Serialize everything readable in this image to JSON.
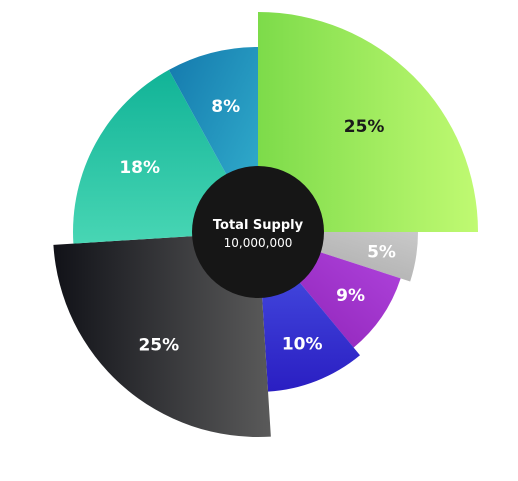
{
  "chart_data": {
    "type": "pie",
    "center": {
      "title": "Total Supply",
      "value": "10,000,000"
    },
    "slices": [
      {
        "label": "25%",
        "value": 25,
        "color_start": "#7ddb4a",
        "color_end": "#c0fa72",
        "label_color": "#1a1a1a"
      },
      {
        "label": "5%",
        "value": 5,
        "color_start": "#c9c9c9",
        "color_end": "#a6a6a6",
        "label_color": "#ffffff"
      },
      {
        "label": "9%",
        "value": 9,
        "color_start": "#b247e0",
        "color_end": "#8b1fb3",
        "label_color": "#ffffff"
      },
      {
        "label": "10%",
        "value": 10,
        "color_start": "#4a55e6",
        "color_end": "#2a1ec2",
        "label_color": "#ffffff"
      },
      {
        "label": "25%",
        "value": 25,
        "color_start": "#111218",
        "color_end": "#5a5a5a",
        "label_color": "#ffffff"
      },
      {
        "label": "18%",
        "value": 18,
        "color_start": "#11b397",
        "color_end": "#48d6b4",
        "label_color": "#ffffff"
      },
      {
        "label": "8%",
        "value": 8,
        "color_start": "#1479ad",
        "color_end": "#34b2cf",
        "label_color": "#ffffff"
      }
    ]
  }
}
